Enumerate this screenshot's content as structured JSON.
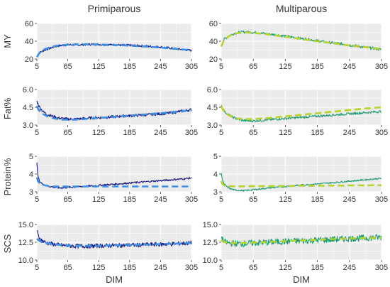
{
  "chart_data": {
    "type": "line",
    "columns": [
      "Primiparous",
      "Multiparous"
    ],
    "rows": [
      "MY",
      "Fat%",
      "Protein%",
      "SCS"
    ],
    "xlabel": "DIM",
    "x_ticks": [
      5,
      65,
      125,
      185,
      245,
      305
    ],
    "xlim": [
      5,
      305
    ],
    "grid": true,
    "legend": "none",
    "colors": {
      "panel_bg": "#EBEBEB",
      "grid": "#FFFFFF",
      "text": "#333333",
      "primi_observed": "#1A1A80",
      "primi_fitted": "#3A8FE6",
      "multi_observed": "#1A9970",
      "multi_fitted": "#B7D22A"
    },
    "panels": [
      {
        "row": "MY",
        "column": "Primiparous",
        "ylim": [
          20,
          60
        ],
        "y_ticks": [
          "20",
          "40",
          "60"
        ],
        "y_tick_values": [
          20,
          40,
          60
        ],
        "observed": {
          "x": [
            5,
            10,
            20,
            30,
            40,
            50,
            65,
            80,
            95,
            110,
            125,
            140,
            155,
            170,
            185,
            200,
            215,
            230,
            245,
            260,
            275,
            290,
            305
          ],
          "y": [
            23,
            27,
            30,
            32,
            34,
            35,
            36,
            36,
            36,
            36.5,
            36.5,
            36,
            36,
            35.5,
            35.5,
            35,
            34.5,
            34,
            33.5,
            32.5,
            31.5,
            30.5,
            29.5
          ],
          "noise": 1.2
        },
        "fitted": {
          "x": [
            5,
            10,
            20,
            30,
            40,
            50,
            65,
            80,
            95,
            110,
            125,
            140,
            155,
            170,
            185,
            200,
            215,
            230,
            245,
            260,
            275,
            290,
            305
          ],
          "y": [
            22,
            27,
            31,
            33,
            34.5,
            35.5,
            36,
            36.3,
            36.5,
            36.5,
            36.3,
            36,
            35.8,
            35.5,
            35,
            34.5,
            34,
            33.4,
            32.8,
            32,
            31.3,
            30.6,
            30
          ]
        }
      },
      {
        "row": "MY",
        "column": "Multiparous",
        "ylim": [
          20,
          60
        ],
        "y_ticks": [
          "20",
          "40",
          "60"
        ],
        "y_tick_values": [
          20,
          40,
          60
        ],
        "observed": {
          "x": [
            5,
            10,
            20,
            30,
            40,
            50,
            65,
            80,
            95,
            110,
            125,
            140,
            155,
            170,
            185,
            200,
            215,
            230,
            245,
            260,
            275,
            290,
            305
          ],
          "y": [
            36,
            42,
            46,
            49,
            50,
            50.5,
            50,
            49,
            48,
            47,
            45.5,
            44.5,
            43,
            42,
            40.5,
            39,
            38,
            37,
            35.5,
            34.5,
            33,
            32,
            30.5
          ],
          "noise": 1.5
        },
        "fitted": {
          "x": [
            5,
            10,
            20,
            30,
            40,
            50,
            65,
            80,
            95,
            110,
            125,
            140,
            155,
            170,
            185,
            200,
            215,
            230,
            245,
            260,
            275,
            290,
            305
          ],
          "y": [
            34,
            41,
            46,
            48.5,
            49.5,
            49.8,
            49.5,
            48.5,
            47.5,
            46.3,
            45,
            43.8,
            42.5,
            41.2,
            40,
            38.8,
            37.6,
            36.4,
            35.3,
            34.2,
            33.2,
            32.2,
            31.2
          ]
        }
      },
      {
        "row": "Fat%",
        "column": "Primiparous",
        "ylim": [
          3.0,
          6.0
        ],
        "y_ticks": [
          "3.0",
          "4.5",
          "6.0"
        ],
        "y_tick_values": [
          3.0,
          4.5,
          6.0
        ],
        "observed": {
          "x": [
            5,
            8,
            12,
            18,
            25,
            35,
            45,
            55,
            65,
            80,
            95,
            110,
            125,
            140,
            155,
            170,
            185,
            200,
            215,
            230,
            245,
            260,
            275,
            290,
            305
          ],
          "y": [
            5.0,
            4.7,
            4.4,
            4.1,
            3.9,
            3.75,
            3.6,
            3.55,
            3.5,
            3.5,
            3.55,
            3.6,
            3.62,
            3.65,
            3.7,
            3.75,
            3.78,
            3.82,
            3.85,
            3.9,
            3.95,
            4.0,
            4.1,
            4.2,
            4.3
          ],
          "noise": 0.12
        },
        "fitted": {
          "x": [
            5,
            8,
            12,
            18,
            25,
            35,
            45,
            55,
            65,
            80,
            95,
            110,
            125,
            140,
            155,
            170,
            185,
            200,
            215,
            230,
            245,
            260,
            275,
            290,
            305
          ],
          "y": [
            4.6,
            4.3,
            4.1,
            3.9,
            3.75,
            3.6,
            3.5,
            3.45,
            3.45,
            3.45,
            3.5,
            3.55,
            3.6,
            3.65,
            3.7,
            3.75,
            3.8,
            3.85,
            3.9,
            3.95,
            4.0,
            4.05,
            4.12,
            4.18,
            4.25
          ]
        }
      },
      {
        "row": "Fat%",
        "column": "Multiparous",
        "ylim": [
          3.0,
          6.0
        ],
        "y_ticks": [
          "3.0",
          "4.5",
          "6.0"
        ],
        "y_tick_values": [
          3.0,
          4.5,
          6.0
        ],
        "observed": {
          "x": [
            5,
            8,
            12,
            18,
            25,
            35,
            45,
            55,
            65,
            80,
            95,
            110,
            125,
            140,
            155,
            170,
            185,
            200,
            215,
            230,
            245,
            260,
            275,
            290,
            305
          ],
          "y": [
            4.7,
            4.4,
            4.1,
            3.9,
            3.7,
            3.5,
            3.4,
            3.35,
            3.35,
            3.4,
            3.45,
            3.5,
            3.55,
            3.6,
            3.65,
            3.7,
            3.75,
            3.8,
            3.85,
            3.9,
            3.95,
            4.0,
            4.05,
            4.1,
            4.15
          ],
          "noise": 0.1
        },
        "fitted": {
          "x": [
            5,
            8,
            12,
            18,
            25,
            35,
            45,
            55,
            65,
            80,
            95,
            110,
            125,
            140,
            155,
            170,
            185,
            200,
            215,
            230,
            245,
            260,
            275,
            290,
            305
          ],
          "y": [
            4.6,
            4.3,
            4.05,
            3.85,
            3.7,
            3.55,
            3.5,
            3.5,
            3.5,
            3.55,
            3.6,
            3.67,
            3.73,
            3.8,
            3.87,
            3.93,
            4.0,
            4.07,
            4.13,
            4.2,
            4.27,
            4.33,
            4.4,
            4.45,
            4.5
          ]
        }
      },
      {
        "row": "Protein%",
        "column": "Primiparous",
        "ylim": [
          3,
          5
        ],
        "y_ticks": [
          "3",
          "4",
          "5"
        ],
        "y_tick_values": [
          3,
          4,
          5
        ],
        "observed": {
          "x": [
            5,
            7,
            10,
            15,
            20,
            30,
            40,
            50,
            65,
            80,
            95,
            110,
            125,
            140,
            155,
            170,
            185,
            200,
            215,
            230,
            245,
            260,
            275,
            290,
            305
          ],
          "y": [
            4.6,
            3.9,
            3.6,
            3.45,
            3.38,
            3.3,
            3.25,
            3.22,
            3.25,
            3.28,
            3.3,
            3.33,
            3.36,
            3.4,
            3.43,
            3.46,
            3.5,
            3.53,
            3.56,
            3.6,
            3.63,
            3.66,
            3.7,
            3.73,
            3.78
          ],
          "noise": 0.05
        },
        "fitted": {
          "x": [
            5,
            7,
            10,
            15,
            20,
            30,
            40,
            50,
            65,
            80,
            95,
            110,
            125,
            140,
            155,
            170,
            185,
            200,
            215,
            230,
            245,
            260,
            275,
            290,
            305
          ],
          "y": [
            3.8,
            3.6,
            3.5,
            3.42,
            3.37,
            3.32,
            3.3,
            3.3,
            3.3,
            3.3,
            3.3,
            3.3,
            3.3,
            3.3,
            3.3,
            3.3,
            3.3,
            3.3,
            3.3,
            3.3,
            3.3,
            3.3,
            3.3,
            3.3,
            3.3
          ]
        }
      },
      {
        "row": "Protein%",
        "column": "Multiparous",
        "ylim": [
          3,
          5
        ],
        "y_ticks": [
          "3",
          "4",
          "5"
        ],
        "y_tick_values": [
          3,
          4,
          5
        ],
        "observed": {
          "x": [
            5,
            7,
            10,
            15,
            20,
            30,
            40,
            50,
            65,
            80,
            95,
            110,
            125,
            140,
            155,
            170,
            185,
            200,
            215,
            230,
            245,
            260,
            275,
            290,
            305
          ],
          "y": [
            4.1,
            3.7,
            3.45,
            3.3,
            3.2,
            3.1,
            3.07,
            3.07,
            3.12,
            3.17,
            3.22,
            3.26,
            3.3,
            3.34,
            3.38,
            3.41,
            3.45,
            3.48,
            3.52,
            3.56,
            3.6,
            3.64,
            3.68,
            3.72,
            3.76
          ],
          "noise": 0.04
        },
        "fitted": {
          "x": [
            5,
            7,
            10,
            15,
            20,
            30,
            40,
            50,
            65,
            80,
            95,
            110,
            125,
            140,
            155,
            170,
            185,
            200,
            215,
            230,
            245,
            260,
            275,
            290,
            305
          ],
          "y": [
            3.6,
            3.45,
            3.37,
            3.33,
            3.32,
            3.31,
            3.31,
            3.31,
            3.32,
            3.32,
            3.32,
            3.33,
            3.33,
            3.33,
            3.34,
            3.34,
            3.34,
            3.35,
            3.35,
            3.35,
            3.36,
            3.36,
            3.36,
            3.37,
            3.37
          ]
        }
      },
      {
        "row": "SCS",
        "column": "Primiparous",
        "ylim": [
          10.0,
          15.0
        ],
        "y_ticks": [
          "10.0",
          "12.5",
          "15.0"
        ],
        "y_tick_values": [
          10.0,
          12.5,
          15.0
        ],
        "observed": {
          "x": [
            5,
            8,
            12,
            18,
            25,
            35,
            45,
            55,
            65,
            80,
            95,
            110,
            125,
            140,
            155,
            170,
            185,
            200,
            215,
            230,
            245,
            260,
            275,
            290,
            305
          ],
          "y": [
            14.0,
            13.4,
            12.9,
            12.6,
            12.4,
            12.25,
            12.15,
            12.05,
            12.0,
            11.95,
            11.95,
            11.95,
            12.0,
            12.0,
            12.05,
            12.05,
            12.1,
            12.1,
            12.15,
            12.2,
            12.2,
            12.25,
            12.3,
            12.35,
            12.4
          ],
          "noise": 0.3
        },
        "fitted": {
          "x": [
            5,
            8,
            12,
            18,
            25,
            35,
            45,
            55,
            65,
            80,
            95,
            110,
            125,
            140,
            155,
            170,
            185,
            200,
            215,
            230,
            245,
            260,
            275,
            290,
            305
          ],
          "y": [
            13.0,
            12.8,
            12.6,
            12.45,
            12.35,
            12.25,
            12.15,
            12.1,
            12.05,
            12.0,
            12.0,
            12.0,
            12.0,
            12.05,
            12.05,
            12.1,
            12.1,
            12.15,
            12.15,
            12.2,
            12.25,
            12.3,
            12.3,
            12.35,
            12.4
          ]
        }
      },
      {
        "row": "SCS",
        "column": "Multiparous",
        "ylim": [
          10.0,
          15.0
        ],
        "y_ticks": [
          "10.0",
          "12.5",
          "15.0"
        ],
        "y_tick_values": [
          10.0,
          12.5,
          15.0
        ],
        "observed": {
          "x": [
            5,
            8,
            12,
            18,
            25,
            35,
            45,
            55,
            65,
            80,
            95,
            110,
            125,
            140,
            155,
            170,
            185,
            200,
            215,
            230,
            245,
            260,
            275,
            290,
            305
          ],
          "y": [
            13.2,
            12.8,
            12.5,
            12.4,
            12.35,
            12.3,
            12.3,
            12.35,
            12.4,
            12.45,
            12.5,
            12.55,
            12.6,
            12.65,
            12.7,
            12.75,
            12.8,
            12.85,
            12.9,
            12.95,
            13.0,
            13.05,
            13.1,
            13.15,
            13.2
          ],
          "noise": 0.45
        },
        "fitted": {
          "x": [
            5,
            8,
            12,
            18,
            25,
            35,
            45,
            55,
            65,
            80,
            95,
            110,
            125,
            140,
            155,
            170,
            185,
            200,
            215,
            230,
            245,
            260,
            275,
            290,
            305
          ],
          "y": [
            12.8,
            12.6,
            12.5,
            12.45,
            12.4,
            12.4,
            12.4,
            12.42,
            12.45,
            12.5,
            12.55,
            12.6,
            12.65,
            12.7,
            12.75,
            12.8,
            12.85,
            12.9,
            12.95,
            13.0,
            13.05,
            13.08,
            13.1,
            13.12,
            13.15
          ]
        }
      }
    ]
  }
}
